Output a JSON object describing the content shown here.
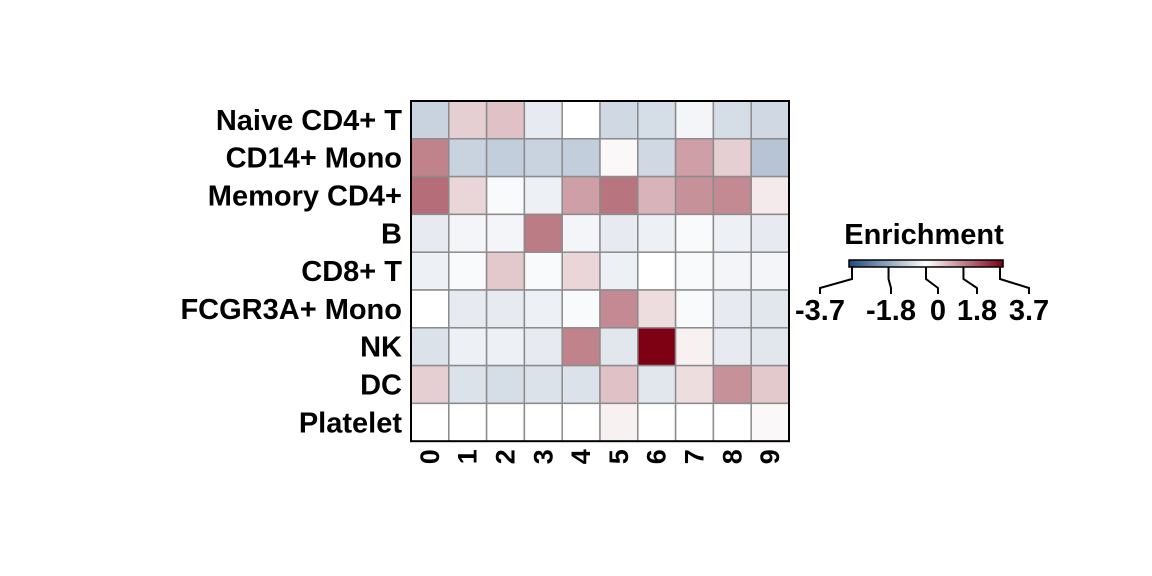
{
  "chart_data": {
    "type": "heatmap",
    "title": "",
    "xlabel": "",
    "ylabel": "",
    "rows": [
      "Naive CD4+ T",
      "CD14+ Mono",
      "Memory CD4+",
      "B",
      "CD8+ T",
      "FCGR3A+ Mono",
      "NK",
      "DC",
      "Platelet"
    ],
    "columns": [
      "0",
      "1",
      "2",
      "3",
      "4",
      "5",
      "6",
      "7",
      "8",
      "9"
    ],
    "values": [
      [
        -0.9,
        0.7,
        0.9,
        -0.4,
        0.0,
        -0.8,
        -0.7,
        -0.2,
        -0.7,
        -0.8
      ],
      [
        1.8,
        -0.9,
        -1.0,
        -0.9,
        -1.0,
        0.1,
        -0.8,
        1.4,
        0.7,
        -1.2
      ],
      [
        2.1,
        0.6,
        -0.1,
        -0.3,
        1.4,
        2.0,
        1.1,
        1.6,
        1.7,
        0.3
      ],
      [
        -0.4,
        -0.2,
        -0.2,
        1.9,
        -0.2,
        -0.4,
        -0.3,
        -0.1,
        -0.3,
        -0.4
      ],
      [
        -0.3,
        -0.1,
        0.8,
        -0.1,
        0.6,
        -0.3,
        0.0,
        -0.1,
        -0.2,
        -0.2
      ],
      [
        0.0,
        -0.4,
        -0.4,
        -0.3,
        -0.1,
        1.7,
        0.5,
        -0.1,
        -0.4,
        -0.5
      ],
      [
        -0.6,
        -0.3,
        -0.3,
        -0.4,
        1.8,
        -0.5,
        3.7,
        0.2,
        -0.4,
        -0.5
      ],
      [
        0.7,
        -0.6,
        -0.7,
        -0.6,
        -0.6,
        0.9,
        -0.5,
        0.5,
        1.6,
        0.8
      ],
      [
        0.0,
        0.0,
        0.0,
        0.0,
        0.0,
        0.2,
        0.0,
        0.0,
        0.0,
        0.1
      ]
    ],
    "range": [
      -3.7,
      3.7
    ],
    "legend": {
      "title": "Enrichment",
      "ticks": [
        "-3.7",
        "-1.8",
        "0",
        "1.8",
        "3.7"
      ],
      "tick_values": [
        -3.7,
        -1.8,
        0,
        1.8,
        3.7
      ],
      "placement": "right"
    },
    "colors": {
      "low": "#1f4a7c",
      "mid": "#ffffff",
      "high": "#7d0013",
      "cell_border": "#8c8c8c",
      "frame": "#000000"
    }
  }
}
